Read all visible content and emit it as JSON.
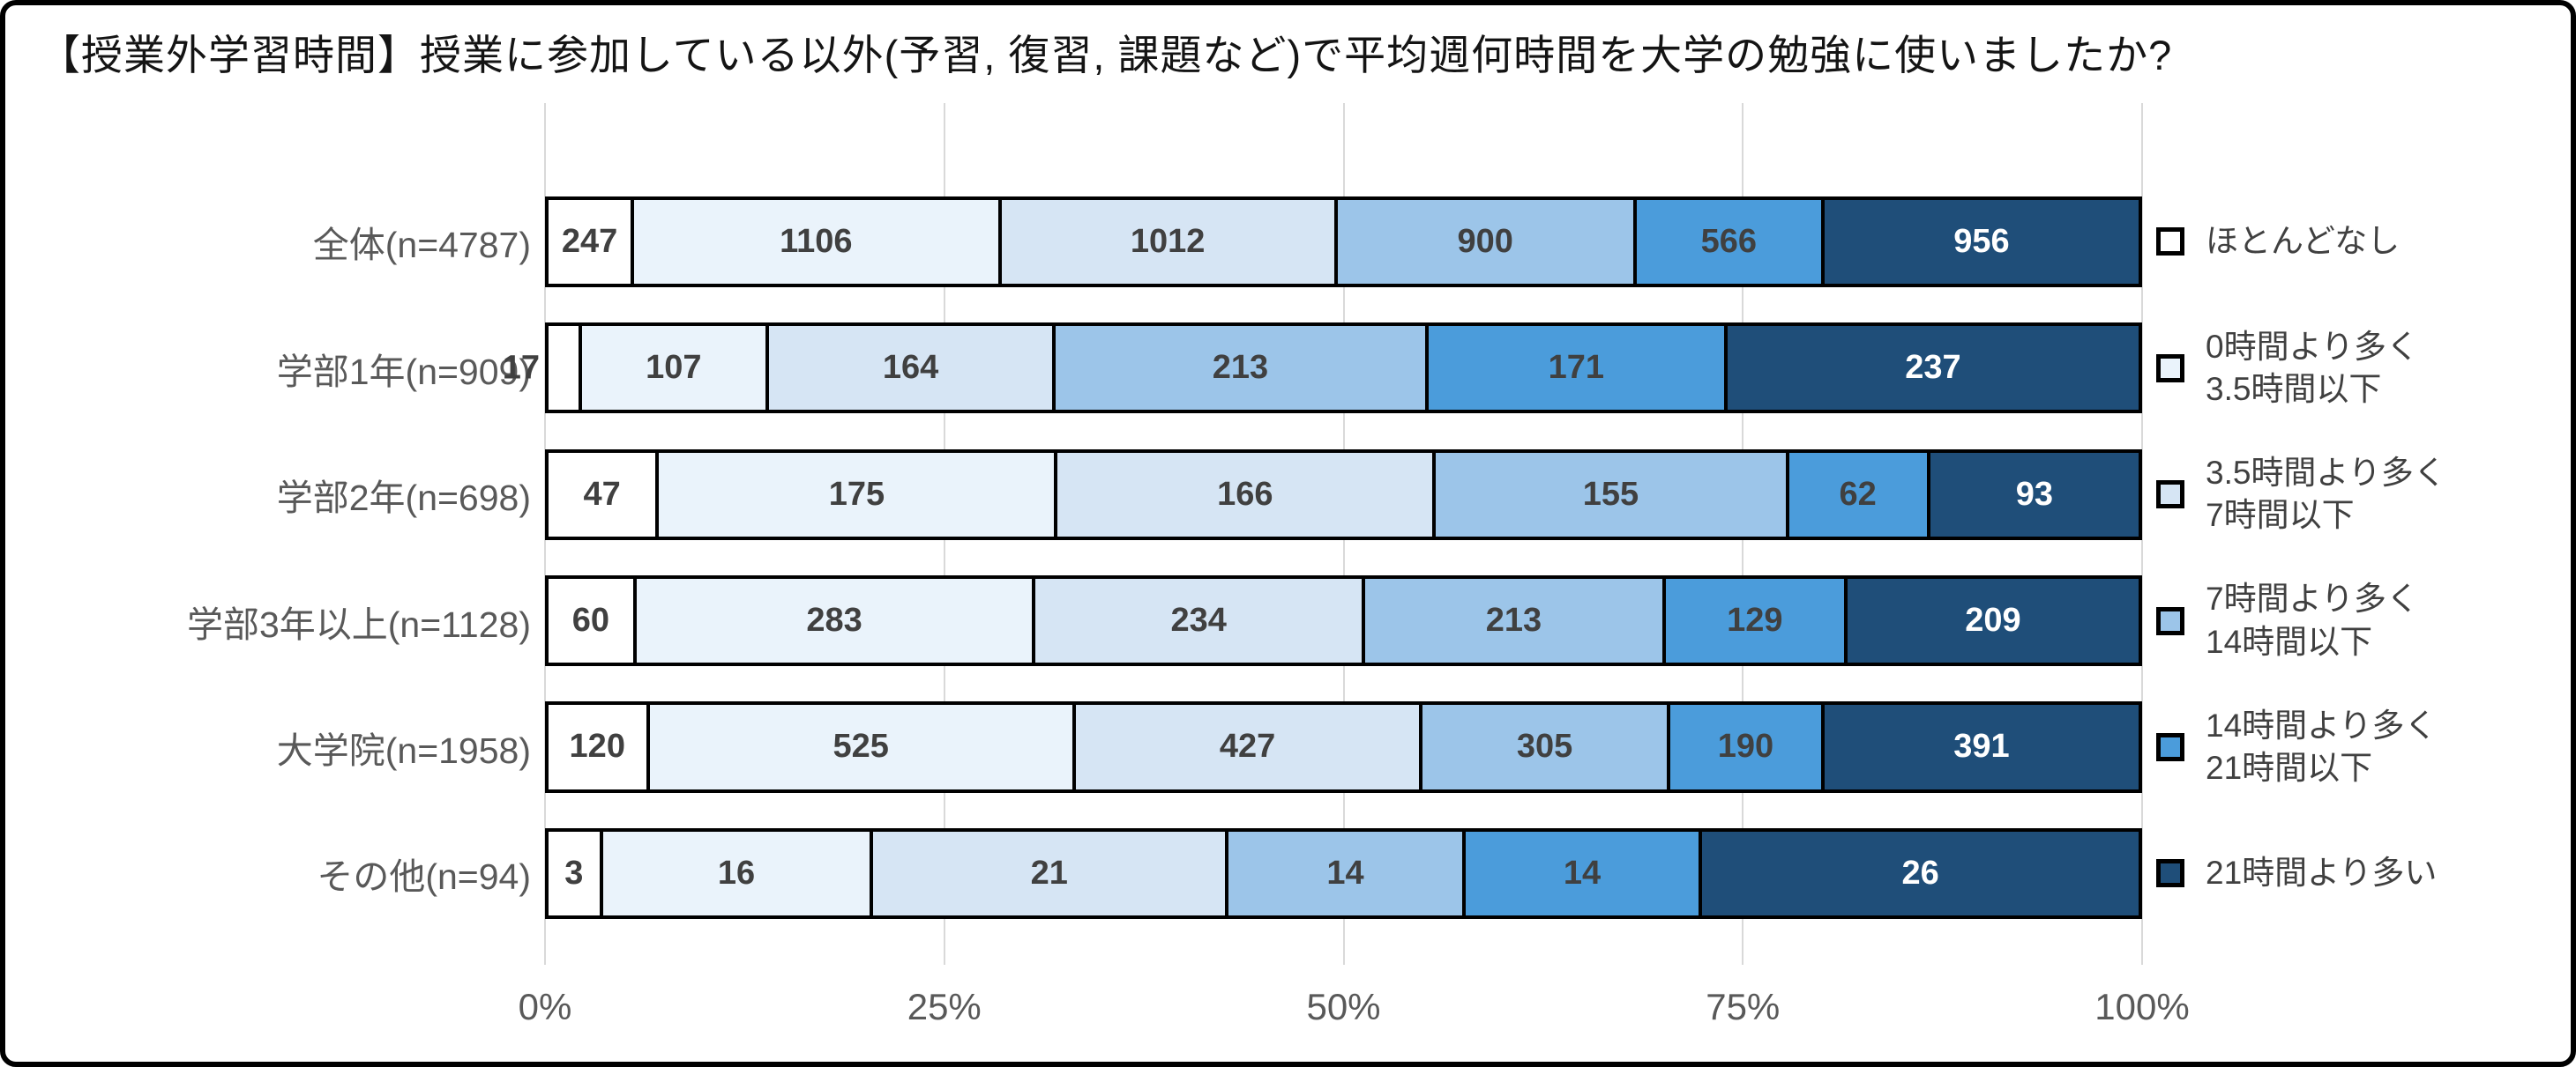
{
  "title": "【授業外学習時間】授業に参加している以外(予習, 復習, 課題など)で平均週何時間を大学の勉強に使いましたか?",
  "chart_data": {
    "type": "bar",
    "subtype": "horizontal-100pct-stacked",
    "title": "【授業外学習時間】授業に参加している以外(予習, 復習, 課題など)で平均週何時間を大学の勉強に使いましたか?",
    "categories": [
      "全体(n=4787)",
      "学部1年(n=909)",
      "学部2年(n=698)",
      "学部3年以上(n=1128)",
      "大学院(n=1958)",
      "その他(n=94)"
    ],
    "category_totals": [
      4787,
      909,
      698,
      1128,
      1958,
      94
    ],
    "series": [
      {
        "name": "ほとんどなし",
        "color": "#FFFFFF",
        "label_color": "#404040",
        "values": [
          247,
          17,
          47,
          60,
          120,
          3
        ]
      },
      {
        "name": "0時間より多く\n3.5時間以下",
        "color": "#EAF3FB",
        "label_color": "#404040",
        "values": [
          1106,
          107,
          175,
          283,
          525,
          16
        ]
      },
      {
        "name": "3.5時間より多く\n7時間以下",
        "color": "#D6E5F4",
        "label_color": "#404040",
        "values": [
          1012,
          164,
          166,
          234,
          427,
          21
        ]
      },
      {
        "name": "7時間より多く\n14時間以下",
        "color": "#9CC5E9",
        "label_color": "#404040",
        "values": [
          900,
          213,
          155,
          213,
          305,
          14
        ]
      },
      {
        "name": "14時間より多く\n21時間以下",
        "color": "#4B9CDB",
        "label_color": "#404040",
        "values": [
          566,
          171,
          62,
          129,
          190,
          14
        ]
      },
      {
        "name": "21時間より多い",
        "color": "#1F4E79",
        "label_color": "#FFFFFF",
        "values": [
          956,
          237,
          93,
          209,
          391,
          26
        ]
      }
    ],
    "x_ticks": [
      "0%",
      "25%",
      "50%",
      "75%",
      "100%"
    ],
    "xlim": [
      0,
      100
    ],
    "grid": true,
    "legend_position": "right",
    "colors": {
      "gridline": "#D9D9D9",
      "bar_border": "#000000",
      "category_label": "#595959",
      "tick_label": "#595959",
      "value_label": "#404040"
    }
  }
}
